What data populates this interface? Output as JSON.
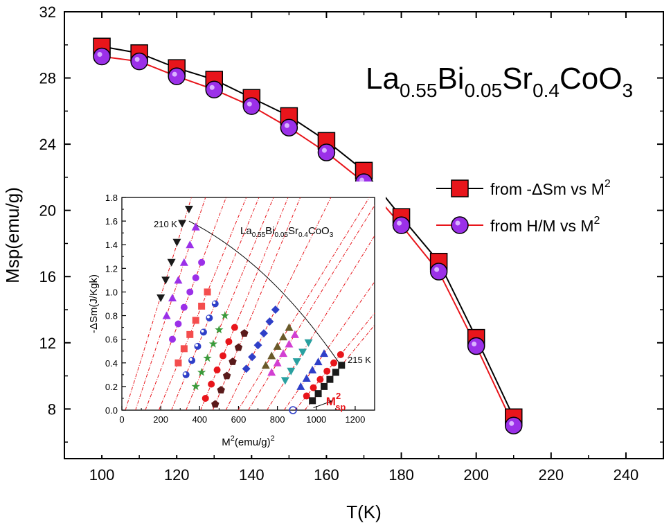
{
  "chart_data": [
    {
      "type": "line",
      "formula": {
        "parts": [
          {
            "text": "La",
            "sub": false
          },
          {
            "text": "0.55",
            "sub": true
          },
          {
            "text": "Bi",
            "sub": false
          },
          {
            "text": "0.05",
            "sub": true
          },
          {
            "text": "Sr",
            "sub": false
          },
          {
            "text": "0.4",
            "sub": true
          },
          {
            "text": "CoO",
            "sub": false
          },
          {
            "text": "3",
            "sub": true
          }
        ]
      },
      "xlabel": "T(K)",
      "ylabel": "Msp(emu/g)",
      "xlim": [
        90,
        250
      ],
      "ylim": [
        5,
        32
      ],
      "xticks": [
        "100",
        "120",
        "140",
        "160",
        "180",
        "200",
        "220",
        "240"
      ],
      "yticks": [
        "8",
        "12",
        "16",
        "20",
        "24",
        "28",
        "32"
      ],
      "x": [
        100,
        110,
        120,
        130,
        140,
        150,
        160,
        170,
        180,
        190,
        200,
        210
      ],
      "series": [
        {
          "name": "from -ΔSm vs M",
          "name_sup": "2",
          "color": "#000000",
          "marker": "square",
          "marker_color": "#e8151b",
          "values": [
            29.9,
            29.5,
            28.6,
            27.9,
            26.8,
            25.7,
            24.2,
            22.4,
            19.6,
            16.9,
            12.3,
            7.5
          ]
        },
        {
          "name": "from H/M vs M",
          "name_sup": "2",
          "color": "#e8151b",
          "marker": "circle",
          "marker_color": "#9b30e8",
          "values": [
            29.3,
            29.0,
            28.1,
            27.3,
            26.3,
            25.0,
            23.5,
            21.7,
            19.1,
            16.3,
            11.8,
            7.0
          ]
        }
      ],
      "legend": "right"
    },
    {
      "type": "scatter",
      "formula": {
        "parts": [
          {
            "text": "La",
            "sub": false
          },
          {
            "text": "0.55",
            "sub": true
          },
          {
            "text": "Bi",
            "sub": false
          },
          {
            "text": "0.05",
            "sub": true
          },
          {
            "text": "Sr",
            "sub": false
          },
          {
            "text": "0.4",
            "sub": true
          },
          {
            "text": "CoO",
            "sub": false
          },
          {
            "text": "3",
            "sub": true
          }
        ]
      },
      "xlabel": "M",
      "xlabel_sup": "2",
      "xlabel_rest": "(emu/g)",
      "xlabel_sup2": "2",
      "ylabel": "-ΔSm(J/Kgk)",
      "xlim": [
        0,
        1300
      ],
      "ylim": [
        0,
        1.8
      ],
      "xticks": [
        "0",
        "200",
        "400",
        "600",
        "800",
        "1000",
        "1200"
      ],
      "yticks": [
        "0.0",
        "0.2",
        "0.4",
        "0.6",
        "0.8",
        "1.0",
        "1.2",
        "1.4",
        "1.6",
        "1.8"
      ],
      "annotations": {
        "top": "210 K",
        "bottom": "215 K",
        "msp_main": "M",
        "msp_sup": "2",
        "msp_sub": "sp"
      },
      "envelope": [
        [
          345,
          1.6
        ],
        [
          700,
          1.3
        ],
        [
          950,
          0.8
        ],
        [
          1130,
          0.37
        ]
      ],
      "msp_point": [
        880,
        0.0
      ],
      "series": [
        {
          "marker": "tri-down",
          "color": "#1a1a1a",
          "points": [
            [
              200,
              0.95
            ],
            [
              225,
              1.1
            ],
            [
              255,
              1.25
            ],
            [
              283,
              1.42
            ],
            [
              310,
              1.58
            ],
            [
              345,
              1.7
            ]
          ]
        },
        {
          "marker": "triangle",
          "color": "#9b30e8",
          "points": [
            [
              230,
              0.8
            ],
            [
              260,
              0.95
            ],
            [
              290,
              1.1
            ],
            [
              320,
              1.25
            ],
            [
              350,
              1.4
            ],
            [
              380,
              1.55
            ]
          ]
        },
        {
          "marker": "circle",
          "color": "#9b30e8",
          "points": [
            [
              260,
              0.6
            ],
            [
              290,
              0.73
            ],
            [
              320,
              0.87
            ],
            [
              350,
              1.0
            ],
            [
              380,
              1.12
            ],
            [
              410,
              1.25
            ]
          ]
        },
        {
          "marker": "square",
          "color": "#f44d4d",
          "points": [
            [
              290,
              0.4
            ],
            [
              320,
              0.52
            ],
            [
              350,
              0.64
            ],
            [
              380,
              0.76
            ],
            [
              410,
              0.88
            ],
            [
              440,
              1.0
            ]
          ]
        },
        {
          "marker": "ball",
          "color": "#2f3fc8",
          "points": [
            [
              330,
              0.3
            ],
            [
              360,
              0.42
            ],
            [
              390,
              0.54
            ],
            [
              420,
              0.66
            ],
            [
              450,
              0.78
            ],
            [
              480,
              0.9
            ]
          ]
        },
        {
          "marker": "star",
          "color": "#3a9a3a",
          "points": [
            [
              380,
              0.2
            ],
            [
              410,
              0.32
            ],
            [
              440,
              0.44
            ],
            [
              470,
              0.56
            ],
            [
              500,
              0.68
            ],
            [
              530,
              0.8
            ]
          ]
        },
        {
          "marker": "circle",
          "color": "#e8151b",
          "points": [
            [
              430,
              0.1
            ],
            [
              460,
              0.22
            ],
            [
              490,
              0.34
            ],
            [
              520,
              0.46
            ],
            [
              550,
              0.58
            ],
            [
              580,
              0.7
            ]
          ]
        },
        {
          "marker": "pentagon",
          "color": "#5a1a1a",
          "points": [
            [
              480,
              0.05
            ],
            [
              510,
              0.17
            ],
            [
              540,
              0.29
            ],
            [
              570,
              0.41
            ],
            [
              600,
              0.53
            ],
            [
              630,
              0.65
            ]
          ]
        },
        {
          "marker": "diamond",
          "color": "#2f3fc8",
          "points": [
            [
              640,
              0.35
            ],
            [
              670,
              0.45
            ],
            [
              700,
              0.55
            ],
            [
              730,
              0.65
            ],
            [
              760,
              0.75
            ],
            [
              790,
              0.85
            ]
          ]
        },
        {
          "marker": "triangle",
          "color": "#6a5a2a",
          "points": [
            [
              740,
              0.38
            ],
            [
              770,
              0.46
            ],
            [
              800,
              0.54
            ],
            [
              830,
              0.62
            ],
            [
              860,
              0.7
            ]
          ]
        },
        {
          "marker": "triangle",
          "color": "#d23fd2",
          "points": [
            [
              770,
              0.32
            ],
            [
              800,
              0.4
            ],
            [
              830,
              0.48
            ],
            [
              860,
              0.56
            ],
            [
              890,
              0.64
            ]
          ]
        },
        {
          "marker": "tri-down",
          "color": "#2aa0a0",
          "points": [
            [
              840,
              0.25
            ],
            [
              870,
              0.33
            ],
            [
              900,
              0.41
            ],
            [
              930,
              0.49
            ],
            [
              960,
              0.57
            ]
          ]
        },
        {
          "marker": "triangle",
          "color": "#2f3fc8",
          "points": [
            [
              920,
              0.2
            ],
            [
              950,
              0.27
            ],
            [
              980,
              0.34
            ],
            [
              1010,
              0.41
            ],
            [
              1040,
              0.48
            ]
          ]
        },
        {
          "marker": "circle",
          "color": "#e8151b",
          "points": [
            [
              950,
              0.12
            ],
            [
              985,
              0.19
            ],
            [
              1020,
              0.26
            ],
            [
              1055,
              0.33
            ],
            [
              1090,
              0.4
            ],
            [
              1125,
              0.47
            ]
          ]
        },
        {
          "marker": "square",
          "color": "#1a1a1a",
          "points": [
            [
              980,
              0.08
            ],
            [
              1010,
              0.14
            ],
            [
              1040,
              0.2
            ],
            [
              1070,
              0.26
            ],
            [
              1100,
              0.32
            ],
            [
              1130,
              0.38
            ]
          ]
        }
      ]
    }
  ]
}
